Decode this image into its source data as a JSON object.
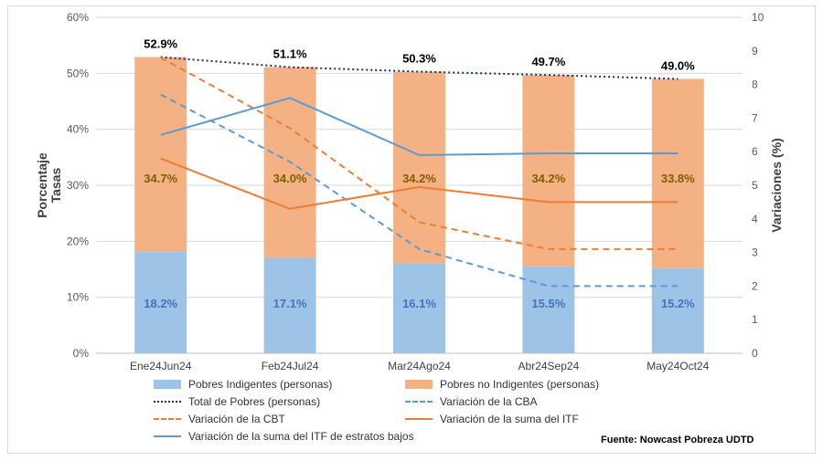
{
  "chart_data": {
    "type": "bar",
    "categories": [
      "Ene24Jun24",
      "Feb24Jul24",
      "Mar24Ago24",
      "Abr24Sep24",
      "May24Oct24"
    ],
    "y_left": {
      "label_line1": "Porcentaje",
      "label_line2": "Tasas",
      "lim": [
        0,
        60
      ],
      "ticks": [
        "0%",
        "10%",
        "20%",
        "30%",
        "40%",
        "50%",
        "60%"
      ]
    },
    "y_right": {
      "label": "Variaciones (%)",
      "lim": [
        0,
        10
      ],
      "ticks": [
        "0",
        "1",
        "2",
        "3",
        "4",
        "5",
        "6",
        "7",
        "8",
        "9",
        "10"
      ]
    },
    "bar_series": [
      {
        "name": "Pobres Indigentes (personas)",
        "values": [
          18.2,
          17.1,
          16.1,
          15.5,
          15.2
        ],
        "labels": [
          "18.2%",
          "17.1%",
          "16.1%",
          "15.5%",
          "15.2%"
        ],
        "color": "#9dc3e6",
        "label_color": "#4472c4"
      },
      {
        "name": "Pobres no Indigentes (personas)",
        "values": [
          34.7,
          34.0,
          34.2,
          34.2,
          33.8
        ],
        "labels": [
          "34.7%",
          "34.0%",
          "34.2%",
          "34.2%",
          "33.8%"
        ],
        "color": "#f4b183",
        "label_color": "#7f6000"
      }
    ],
    "total_labels": [
      "52.9%",
      "51.1%",
      "50.3%",
      "49.7%",
      "49.0%"
    ],
    "line_series": [
      {
        "name": "Total de Pobres (personas)",
        "axis": "left",
        "values": [
          52.9,
          51.1,
          50.3,
          49.7,
          49.0
        ],
        "color": "#1f2d6b",
        "style": "dotted"
      },
      {
        "name": "Variación de la CBA",
        "axis": "right",
        "values": [
          7.7,
          5.7,
          3.1,
          2.0,
          2.0
        ],
        "color": "#5b9bd5",
        "style": "dashed"
      },
      {
        "name": "Variación de la CBT",
        "axis": "right",
        "values": [
          8.8,
          6.7,
          3.9,
          3.1,
          3.1
        ],
        "color": "#ed7d31",
        "style": "dashed"
      },
      {
        "name": "Variación de la suma del ITF",
        "axis": "right",
        "values": [
          5.8,
          4.3,
          4.95,
          4.5,
          4.5
        ],
        "color": "#ed7d31",
        "style": "solid"
      },
      {
        "name": "Variación de la suma del ITF de estratos bajos",
        "axis": "right",
        "values": [
          6.5,
          7.6,
          5.9,
          5.95,
          5.95
        ],
        "color": "#5b9bd5",
        "style": "solid"
      }
    ],
    "grid": true,
    "legend_position": "bottom"
  },
  "source": "Fuente: Nowcast Pobreza UDTD"
}
